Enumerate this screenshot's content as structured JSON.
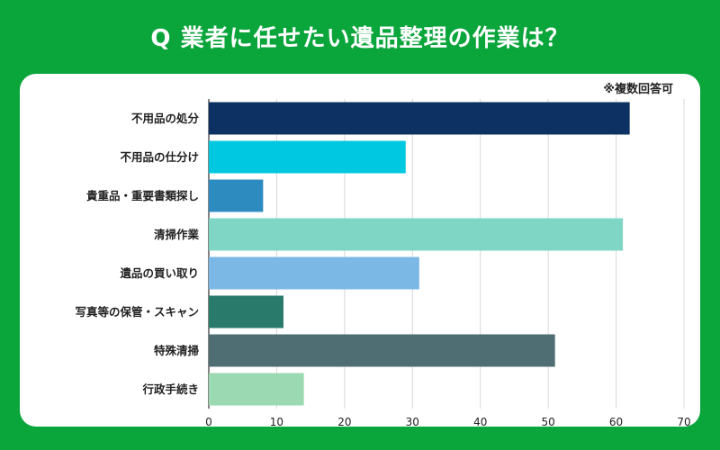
{
  "title": "Q 業者に任せたい遺品整理の作業は？",
  "note": "※複数回答可",
  "chart_data": {
    "type": "bar",
    "orientation": "horizontal",
    "categories": [
      "不用品の処分",
      "不用品の仕分け",
      "貴重品・重要書類探し",
      "清掃作業",
      "遺品の買い取り",
      "写真等の保管・スキャン",
      "特殊清掃",
      "行政手続き"
    ],
    "values": [
      62,
      29,
      8,
      61,
      31,
      11,
      51,
      14
    ],
    "colors": [
      "#0d3163",
      "#00c8e0",
      "#2e8bbf",
      "#7fd6c4",
      "#7cb8e6",
      "#2a7a6b",
      "#4f6e73",
      "#9ad9b1"
    ],
    "xlim": [
      0,
      70
    ],
    "xticks": [
      0,
      10,
      20,
      30,
      40,
      50,
      60,
      70
    ],
    "grid": true
  }
}
